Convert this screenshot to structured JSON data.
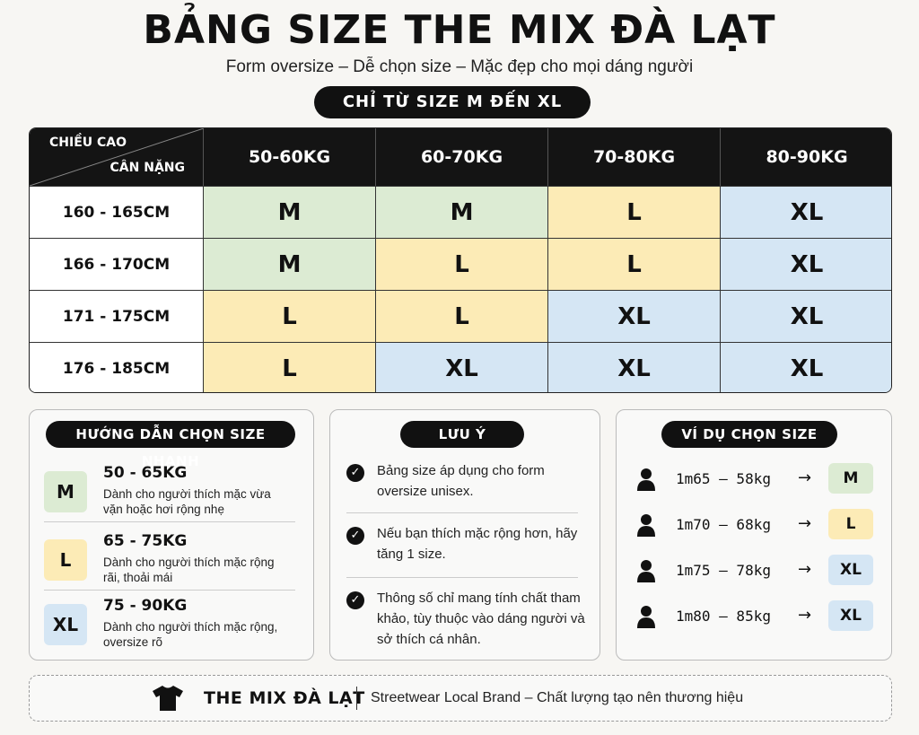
{
  "title": "BẢNG SIZE THE MIX ĐÀ LẠT",
  "subtitle": "Form oversize – Dễ chọn size – Mặc đẹp cho mọi dáng người",
  "range_pill": "CHỈ TỪ SIZE M ĐẾN XL",
  "table": {
    "corner_top": "CHIỀU CAO",
    "corner_bottom": "CÂN NẶNG",
    "columns": [
      "50-60KG",
      "60-70KG",
      "70-80KG",
      "80-90KG"
    ],
    "rows": [
      {
        "height": "160 - 165CM",
        "sizes": [
          "M",
          "M",
          "L",
          "XL"
        ]
      },
      {
        "height": "166 - 170CM",
        "sizes": [
          "M",
          "L",
          "L",
          "XL"
        ]
      },
      {
        "height": "171 - 175CM",
        "sizes": [
          "L",
          "L",
          "XL",
          "XL"
        ]
      },
      {
        "height": "176 - 185CM",
        "sizes": [
          "L",
          "XL",
          "XL",
          "XL"
        ]
      }
    ]
  },
  "guide": {
    "heading": "HƯỚNG DẪN CHỌN SIZE NHANH",
    "items": [
      {
        "size": "M",
        "range": "50 - 65KG",
        "desc": "Dành cho người thích mặc vừa vặn hoặc hơi rộng nhẹ"
      },
      {
        "size": "L",
        "range": "65 - 75KG",
        "desc": "Dành cho người thích mặc rộng rãi, thoải mái"
      },
      {
        "size": "XL",
        "range": "75 - 90KG",
        "desc": "Dành cho người thích mặc rộng, oversize rõ"
      }
    ]
  },
  "notes": {
    "heading": "LƯU Ý",
    "items": [
      "Bảng size áp dụng cho form oversize unisex.",
      "Nếu bạn thích mặc rộng hơn, hãy tăng 1 size.",
      "Thông số chỉ mang tính chất tham khảo, tùy thuộc vào dáng người và sở thích cá nhân."
    ]
  },
  "examples": {
    "heading": "VÍ DỤ CHỌN SIZE",
    "arrow": "→",
    "items": [
      {
        "text": "1m65 – 58kg",
        "size": "M"
      },
      {
        "text": "1m70 – 68kg",
        "size": "L"
      },
      {
        "text": "1m75 – 78kg",
        "size": "XL"
      },
      {
        "text": "1m80 – 85kg",
        "size": "XL"
      }
    ]
  },
  "footer": {
    "brand": "THE MIX ĐÀ LẠT",
    "tagline": "Streetwear Local Brand – Chất lượng tạo nên thương hiệu"
  },
  "colors": {
    "M": "#dcebd3",
    "L": "#fcebb6",
    "XL": "#d5e6f4",
    "header_bg": "#141414"
  },
  "icons": {
    "check": "check-circle-icon",
    "person": "person-icon",
    "shirt": "tshirt-icon"
  }
}
